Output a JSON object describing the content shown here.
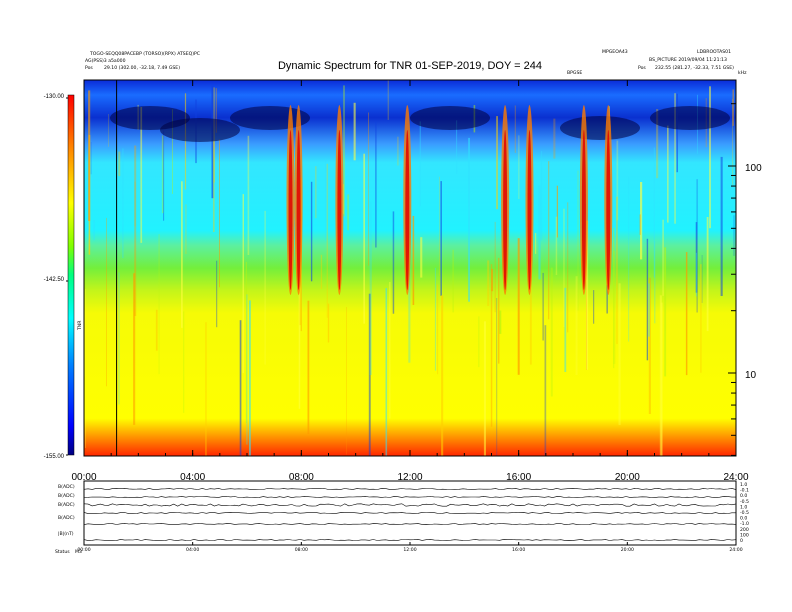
{
  "chart_data": {
    "type": "heatmap",
    "title": "Dynamic Spectrum for TNR 01-SEP-2019, DOY = 244",
    "header": {
      "left_line1": "TOGO-SEQQ08PACEBP (TORSO)(RPX) ATSEQ)PC",
      "left_line2": "AG(PSS)3 a5a000",
      "left_line3_label": "Pos",
      "left_line3_value": "29.10 (302.00, -32.18, 7.49 GSE)",
      "right_line1": "LDBROOTAS01",
      "right_line2": "BS_PICTURE 2019/09/04 11:21:13",
      "right_line3_label": "Pos",
      "right_line3_value": "232.55 (281.27, -32.33, 7.51 GSE)",
      "mid_label": "MPGEOA43",
      "small_mark": "BPGSE",
      "corner_mark": "kHz"
    },
    "x_tick_labels": [
      "00:00",
      "04:00",
      "08:00",
      "12:00",
      "16:00",
      "20:00",
      "24:00"
    ],
    "x_ticks_hours": [
      0,
      4,
      8,
      12,
      16,
      20,
      24
    ],
    "xlim_hours": [
      0,
      24
    ],
    "y_axis": {
      "scale": "log",
      "tick_labels": [
        "100",
        "10"
      ],
      "tick_values": [
        100,
        10
      ]
    },
    "colorbar": {
      "tick_labels": [
        "-130.00",
        "-142.50",
        "-155.00"
      ],
      "range": [
        -155,
        -130
      ],
      "units_label": "TNR",
      "colors": [
        "#000080",
        "#0000ff",
        "#0080ff",
        "#00ffff",
        "#00ff80",
        "#80ff00",
        "#ffff00",
        "#ff8000",
        "#ff0000"
      ]
    },
    "features": {
      "vertical_black_line_hour": 1.2,
      "intense_bursts_hours": [
        7.6,
        7.9,
        9.4,
        11.9,
        15.5,
        16.4,
        18.4,
        19.3
      ]
    },
    "bottom_panel": {
      "row_labels": [
        "B(ADC)",
        "B(ADC)",
        "B(ADC)",
        "B(ADC)",
        "|B|(nT)"
      ],
      "right_labels": [
        "1.0",
        "-0.1",
        "0.0",
        "-0.5",
        "1.0",
        "-0.5",
        "0.0",
        "-1.0",
        "200",
        "100",
        "0"
      ],
      "footer_label": "Status",
      "footer_mark": "M3",
      "x_tick_labels": [
        "00:00",
        "04:00",
        "08:00",
        "12:00",
        "16:00",
        "20:00",
        "24:00"
      ]
    }
  }
}
